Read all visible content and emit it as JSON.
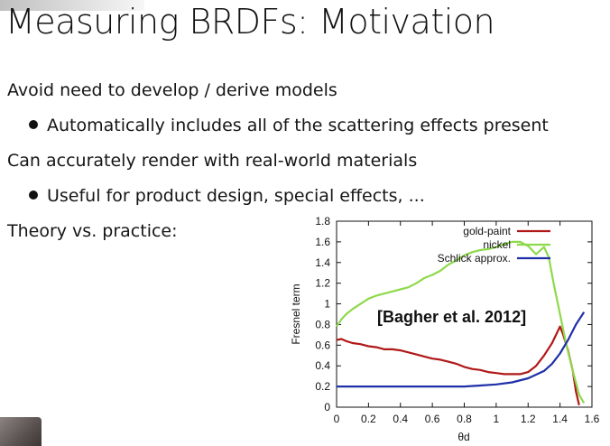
{
  "slide": {
    "title": "Measuring BRDFs: Motivation",
    "lines": [
      {
        "text": "Avoid need to develop / derive models"
      },
      {
        "text": "Automatically includes all of the scattering effects present"
      },
      {
        "text": "Can accurately render with real-world materials"
      },
      {
        "text": "Useful for product design, special effects, ..."
      },
      {
        "text": "Theory vs. practice:"
      }
    ]
  },
  "chart_data": {
    "type": "line",
    "xlabel": "θd",
    "ylabel": "Fresnel term",
    "xlim": [
      0,
      1.6
    ],
    "ylim": [
      0,
      1.8
    ],
    "xticks": [
      "0",
      "0.2",
      "0.4",
      "0.6",
      "0.8",
      "1",
      "1.2",
      "1.4",
      "1.6"
    ],
    "yticks": [
      "0",
      "0.2",
      "0.4",
      "0.6",
      "0.8",
      "1",
      "1.2",
      "1.4",
      "1.6",
      "1.8"
    ],
    "legend_position": "top-left",
    "annotation": "[Bagher et al. 2012]",
    "grid": false,
    "series": [
      {
        "name": "gold-paint",
        "color": "#b01818",
        "points": [
          [
            0,
            0.65
          ],
          [
            0.03,
            0.66
          ],
          [
            0.06,
            0.64
          ],
          [
            0.1,
            0.62
          ],
          [
            0.15,
            0.61
          ],
          [
            0.2,
            0.59
          ],
          [
            0.25,
            0.58
          ],
          [
            0.3,
            0.56
          ],
          [
            0.35,
            0.56
          ],
          [
            0.4,
            0.55
          ],
          [
            0.45,
            0.53
          ],
          [
            0.5,
            0.51
          ],
          [
            0.55,
            0.49
          ],
          [
            0.6,
            0.47
          ],
          [
            0.65,
            0.46
          ],
          [
            0.7,
            0.44
          ],
          [
            0.75,
            0.42
          ],
          [
            0.8,
            0.39
          ],
          [
            0.85,
            0.37
          ],
          [
            0.9,
            0.36
          ],
          [
            0.95,
            0.34
          ],
          [
            1.0,
            0.33
          ],
          [
            1.05,
            0.32
          ],
          [
            1.1,
            0.32
          ],
          [
            1.15,
            0.32
          ],
          [
            1.2,
            0.34
          ],
          [
            1.25,
            0.4
          ],
          [
            1.3,
            0.5
          ],
          [
            1.35,
            0.62
          ],
          [
            1.4,
            0.78
          ],
          [
            1.42,
            0.7
          ],
          [
            1.45,
            0.55
          ],
          [
            1.48,
            0.35
          ],
          [
            1.5,
            0.15
          ],
          [
            1.52,
            0.02
          ]
        ]
      },
      {
        "name": "nickel",
        "color": "#8ed94b",
        "points": [
          [
            0,
            0.78
          ],
          [
            0.03,
            0.85
          ],
          [
            0.06,
            0.9
          ],
          [
            0.1,
            0.95
          ],
          [
            0.15,
            1.0
          ],
          [
            0.2,
            1.05
          ],
          [
            0.25,
            1.08
          ],
          [
            0.3,
            1.1
          ],
          [
            0.35,
            1.12
          ],
          [
            0.4,
            1.14
          ],
          [
            0.45,
            1.16
          ],
          [
            0.5,
            1.2
          ],
          [
            0.55,
            1.25
          ],
          [
            0.6,
            1.28
          ],
          [
            0.65,
            1.32
          ],
          [
            0.7,
            1.38
          ],
          [
            0.75,
            1.42
          ],
          [
            0.8,
            1.47
          ],
          [
            0.85,
            1.5
          ],
          [
            0.9,
            1.52
          ],
          [
            0.95,
            1.53
          ],
          [
            1.0,
            1.55
          ],
          [
            1.05,
            1.58
          ],
          [
            1.1,
            1.6
          ],
          [
            1.15,
            1.6
          ],
          [
            1.2,
            1.56
          ],
          [
            1.25,
            1.48
          ],
          [
            1.3,
            1.55
          ],
          [
            1.33,
            1.45
          ],
          [
            1.36,
            1.2
          ],
          [
            1.4,
            0.9
          ],
          [
            1.44,
            0.6
          ],
          [
            1.48,
            0.35
          ],
          [
            1.52,
            0.12
          ],
          [
            1.55,
            0.04
          ]
        ]
      },
      {
        "name": "Schlick approx.",
        "color": "#1f2fa8",
        "points": [
          [
            0,
            0.2
          ],
          [
            0.2,
            0.2
          ],
          [
            0.4,
            0.2
          ],
          [
            0.6,
            0.2
          ],
          [
            0.8,
            0.2
          ],
          [
            0.9,
            0.21
          ],
          [
            1.0,
            0.22
          ],
          [
            1.1,
            0.24
          ],
          [
            1.2,
            0.28
          ],
          [
            1.3,
            0.35
          ],
          [
            1.35,
            0.42
          ],
          [
            1.4,
            0.52
          ],
          [
            1.45,
            0.65
          ],
          [
            1.5,
            0.8
          ],
          [
            1.55,
            0.92
          ]
        ]
      }
    ]
  }
}
